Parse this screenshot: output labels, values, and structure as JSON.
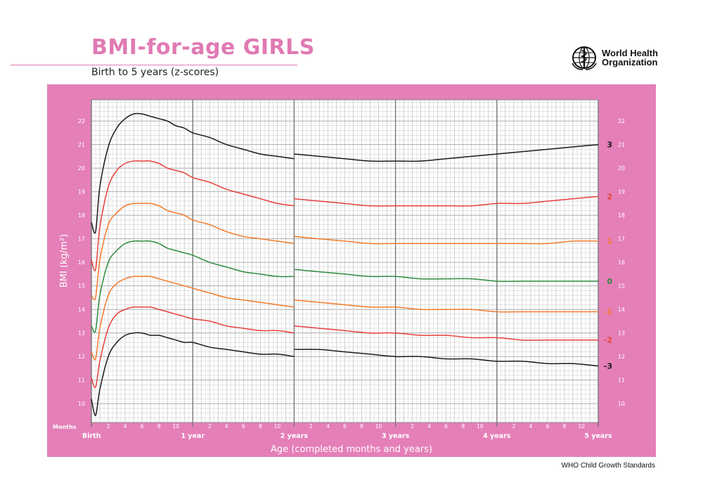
{
  "header": {
    "title": "BMI-for-age GIRLS",
    "subtitle": "Birth to 5 years (z-scores)",
    "org_line1": "World Health",
    "org_line2": "Organization"
  },
  "footer": {
    "credit": "WHO Child Growth Standards"
  },
  "colors": {
    "frame": "#e57fb8",
    "grid_minor": "#c8c8c8",
    "grid_major": "#777777",
    "title": "#e07ab4",
    "z3": "#1a1a1a",
    "z2": "#e8403c",
    "z1": "#f47a2a",
    "z0": "#2e8b3e"
  },
  "chart_data": {
    "type": "line",
    "title": "BMI-for-age GIRLS",
    "subtitle": "Birth to 5 years (z-scores)",
    "xlabel": "Age (completed months and years)",
    "ylabel": "BMI (kg/m²)",
    "x_unit_label": "Months",
    "xlim": [
      0,
      60
    ],
    "ylim": [
      9.2,
      22.9
    ],
    "y_ticks": [
      10,
      11,
      12,
      13,
      14,
      15,
      16,
      17,
      18,
      19,
      20,
      21,
      22
    ],
    "x_month_ticks": [
      2,
      4,
      6,
      8,
      10
    ],
    "x_year_labels": [
      "Birth",
      "1 year",
      "2 years",
      "3 years",
      "4 years",
      "5 years"
    ],
    "grid": true,
    "break_at_months": 24,
    "x_months": [
      0,
      0.5,
      1,
      2,
      3,
      4,
      5,
      6,
      7,
      8,
      9,
      10,
      11,
      12,
      14,
      16,
      18,
      20,
      22,
      24,
      24,
      27,
      30,
      33,
      36,
      39,
      42,
      45,
      48,
      51,
      54,
      57,
      60
    ],
    "series": [
      {
        "name": "3",
        "color_key": "z3",
        "values": [
          17.7,
          17.3,
          19.2,
          20.9,
          21.7,
          22.1,
          22.3,
          22.3,
          22.2,
          22.1,
          22.0,
          21.8,
          21.7,
          21.5,
          21.3,
          21.0,
          20.8,
          20.6,
          20.5,
          20.4,
          20.6,
          20.5,
          20.4,
          20.3,
          20.3,
          20.3,
          20.4,
          20.5,
          20.6,
          20.7,
          20.8,
          20.9,
          21.0
        ]
      },
      {
        "name": "2",
        "color_key": "z2",
        "values": [
          16.1,
          15.7,
          17.5,
          19.2,
          19.9,
          20.2,
          20.3,
          20.3,
          20.3,
          20.2,
          20.0,
          19.9,
          19.8,
          19.6,
          19.4,
          19.1,
          18.9,
          18.7,
          18.5,
          18.4,
          18.7,
          18.6,
          18.5,
          18.4,
          18.4,
          18.4,
          18.4,
          18.4,
          18.5,
          18.5,
          18.6,
          18.7,
          18.8
        ]
      },
      {
        "name": "1",
        "color_key": "z1",
        "values": [
          14.6,
          14.5,
          16.1,
          17.6,
          18.1,
          18.4,
          18.5,
          18.5,
          18.5,
          18.4,
          18.2,
          18.1,
          18.0,
          17.8,
          17.6,
          17.3,
          17.1,
          17.0,
          16.9,
          16.8,
          17.1,
          17.0,
          16.9,
          16.8,
          16.8,
          16.8,
          16.8,
          16.8,
          16.8,
          16.8,
          16.8,
          16.9,
          16.9
        ]
      },
      {
        "name": "0",
        "color_key": "z0",
        "values": [
          13.3,
          13.1,
          14.6,
          16.0,
          16.5,
          16.8,
          16.9,
          16.9,
          16.9,
          16.8,
          16.6,
          16.5,
          16.4,
          16.3,
          16.0,
          15.8,
          15.6,
          15.5,
          15.4,
          15.4,
          15.7,
          15.6,
          15.5,
          15.4,
          15.4,
          15.3,
          15.3,
          15.3,
          15.2,
          15.2,
          15.2,
          15.2,
          15.2
        ]
      },
      {
        "name": "-1",
        "color_key": "z1",
        "values": [
          12.2,
          11.9,
          13.2,
          14.6,
          15.1,
          15.3,
          15.4,
          15.4,
          15.4,
          15.3,
          15.2,
          15.1,
          15.0,
          14.9,
          14.7,
          14.5,
          14.4,
          14.3,
          14.2,
          14.1,
          14.4,
          14.3,
          14.2,
          14.1,
          14.1,
          14.0,
          14.0,
          14.0,
          13.9,
          13.9,
          13.9,
          13.9,
          13.9
        ]
      },
      {
        "name": "-2",
        "color_key": "z2",
        "values": [
          11.1,
          10.7,
          11.8,
          13.2,
          13.8,
          14.0,
          14.1,
          14.1,
          14.1,
          14.0,
          13.9,
          13.8,
          13.7,
          13.6,
          13.5,
          13.3,
          13.2,
          13.1,
          13.1,
          13.0,
          13.3,
          13.2,
          13.1,
          13.0,
          13.0,
          12.9,
          12.9,
          12.8,
          12.8,
          12.7,
          12.7,
          12.7,
          12.7
        ]
      },
      {
        "name": "-3",
        "color_key": "z3",
        "values": [
          10.2,
          9.5,
          10.6,
          12.0,
          12.6,
          12.9,
          13.0,
          13.0,
          12.9,
          12.9,
          12.8,
          12.7,
          12.6,
          12.6,
          12.4,
          12.3,
          12.2,
          12.1,
          12.1,
          12.0,
          12.3,
          12.3,
          12.2,
          12.1,
          12.0,
          12.0,
          11.9,
          11.9,
          11.8,
          11.8,
          11.7,
          11.7,
          11.6
        ]
      }
    ]
  }
}
